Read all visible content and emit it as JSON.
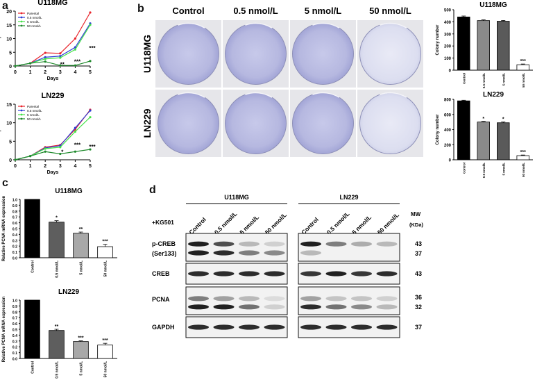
{
  "panels": {
    "a": "a",
    "b": "b",
    "c": "c",
    "d": "d"
  },
  "panel_a": [
    {
      "title": "U118MG",
      "ylabel": "Relative cell proliferation",
      "xlabel": "Days",
      "x_ticks": [
        "0",
        "1",
        "2",
        "3",
        "4",
        "5"
      ],
      "y_ticks": [
        "0",
        "5",
        "10",
        "15",
        "20"
      ],
      "legend": [
        "Parental",
        "0.5 nmol/L",
        "5 nmol/L",
        "50 nmol/L"
      ],
      "colors": [
        "#e8262d",
        "#2e3cd6",
        "#45e34a",
        "#1f8a2c"
      ],
      "annotations": [
        {
          "text": "**",
          "x": 3,
          "y": 0.6
        },
        {
          "text": "***",
          "x": 4,
          "y": 1.7
        },
        {
          "text": "***",
          "x": 5,
          "y": 6.6
        }
      ]
    },
    {
      "title": "LN229",
      "ylabel": "Relative cell proliferation",
      "xlabel": "Days",
      "x_ticks": [
        "0",
        "1",
        "2",
        "3",
        "4",
        "5"
      ],
      "y_ticks": [
        "0",
        "5",
        "10",
        "15"
      ],
      "legend": [
        "Parental",
        "0.5 nmol/L",
        "5 nmol/L",
        "50 nmol/L"
      ],
      "colors": [
        "#e8262d",
        "#2e3cd6",
        "#45e34a",
        "#1f8a2c"
      ],
      "annotations": [
        {
          "text": "*",
          "x": 3,
          "y": 2.2
        },
        {
          "text": "***",
          "x": 4,
          "y": 4.0
        },
        {
          "text": "***",
          "x": 5,
          "y": 3.6
        }
      ]
    }
  ],
  "panel_b": {
    "col_labels": [
      "Control",
      "0.5 nmol/L",
      "5 nmol/L",
      "50 nmol/L"
    ],
    "row_labels": [
      "U118MG",
      "LN229"
    ],
    "bar_charts": [
      {
        "title": "U118MG",
        "ylabel": "Colony number",
        "y_ticks": [
          "0",
          "100",
          "200",
          "300",
          "400",
          "500"
        ],
        "categories": [
          "Control",
          "0.5 nmol/L",
          "5 nmol/L",
          "50 nmol/L"
        ],
        "sig": [
          "",
          "",
          "",
          "***"
        ]
      },
      {
        "title": "LN229",
        "ylabel": "Colony number",
        "y_ticks": [
          "0",
          "200",
          "400",
          "600",
          "800"
        ],
        "categories": [
          "Control",
          "0.5 nmol/L",
          "5 nmol/L",
          "50 nmol/L"
        ],
        "sig": [
          "",
          "*",
          "*",
          "***"
        ]
      }
    ]
  },
  "panel_c": [
    {
      "title": "U118MG",
      "ylabel": "Relative PCNA mRNA expression",
      "y_ticks": [
        "0.0",
        "0.1",
        "0.2",
        "0.3",
        "0.4",
        "0.5",
        "0.6",
        "0.7",
        "0.8",
        "0.9",
        "1.0"
      ],
      "categories": [
        "Control",
        "0.5 nmol/L",
        "5 nmol/L",
        "50 nmol/L"
      ],
      "sig": [
        "",
        "*",
        "**",
        "***"
      ]
    },
    {
      "title": "LN229",
      "ylabel": "Relative PCNA mRNA expression",
      "y_ticks": [
        "0.0",
        "0.1",
        "0.2",
        "0.3",
        "0.4",
        "0.5",
        "0.6",
        "0.7",
        "0.8",
        "0.9",
        "1.0"
      ],
      "categories": [
        "Control",
        "0.5 nmol/L",
        "5 nmol/L",
        "50 nmol/L"
      ],
      "sig": [
        "",
        "**",
        "***",
        "***"
      ]
    }
  ],
  "panel_d": {
    "groups": [
      "U118MG",
      "LN229"
    ],
    "treatment": "+KG501",
    "lanes": [
      "Control",
      "0.5 nmol/L",
      "5 nmol/L",
      "50 nmol/L"
    ],
    "mw_header": "MW",
    "mw_unit": "(KDa)",
    "blots": [
      {
        "label": "p-CREB\n(Ser133)",
        "label1": "p-CREB",
        "label2": "(Ser133)",
        "mw": [
          "43",
          "37"
        ]
      },
      {
        "label": "CREB",
        "mw": [
          "43"
        ]
      },
      {
        "label": "PCNA",
        "mw": [
          "36",
          "32"
        ]
      },
      {
        "label": "GAPDH",
        "mw": [
          "37"
        ]
      }
    ]
  },
  "chart_data": [
    {
      "type": "line",
      "title": "U118MG",
      "xlabel": "Days",
      "ylabel": "Relative cell proliferation",
      "x": [
        0,
        1,
        2,
        3,
        4,
        5
      ],
      "xlim": [
        0,
        5
      ],
      "ylim": [
        0,
        20
      ],
      "series": [
        {
          "name": "Parental",
          "values": [
            0,
            1.0,
            4.8,
            4.6,
            10.0,
            19.5
          ]
        },
        {
          "name": "0.5 nmol/L",
          "values": [
            0,
            1.0,
            3.2,
            3.6,
            6.8,
            15.5
          ]
        },
        {
          "name": "5 nmol/L",
          "values": [
            0,
            1.0,
            2.6,
            3.0,
            6.0,
            15.0
          ]
        },
        {
          "name": "50 nmol/L",
          "values": [
            0,
            1.0,
            1.6,
            0.2,
            0.2,
            1.8
          ]
        }
      ]
    },
    {
      "type": "line",
      "title": "LN229",
      "xlabel": "Days",
      "ylabel": "Relative cell proliferation",
      "x": [
        0,
        1,
        2,
        3,
        4,
        5
      ],
      "xlim": [
        0,
        5
      ],
      "ylim": [
        0,
        15
      ],
      "series": [
        {
          "name": "Parental",
          "values": [
            0,
            1.0,
            3.4,
            4.0,
            8.2,
            13.5
          ]
        },
        {
          "name": "0.5 nmol/L",
          "values": [
            0,
            1.0,
            3.2,
            3.8,
            8.6,
            13.3
          ]
        },
        {
          "name": "5 nmol/L",
          "values": [
            0,
            1.0,
            3.0,
            3.4,
            7.6,
            11.5
          ]
        },
        {
          "name": "50 nmol/L",
          "values": [
            0,
            1.0,
            2.2,
            1.6,
            2.2,
            2.8
          ]
        }
      ]
    },
    {
      "type": "bar",
      "title": "U118MG",
      "ylabel": "Colony number",
      "ylim": [
        0,
        500
      ],
      "categories": [
        "Control",
        "0.5 nmol/L",
        "5 nmol/L",
        "50 nmol/L"
      ],
      "values": [
        440,
        410,
        405,
        45
      ],
      "errors": [
        8,
        6,
        6,
        6
      ],
      "colors": [
        "#000000",
        "#8a8a8a",
        "#5a5a5a",
        "#ffffff"
      ]
    },
    {
      "type": "bar",
      "title": "LN229",
      "ylabel": "Colony number",
      "ylim": [
        0,
        800
      ],
      "categories": [
        "Control",
        "0.5 nmol/L",
        "5 nmol/L",
        "50 nmol/L"
      ],
      "values": [
        780,
        500,
        490,
        55
      ],
      "errors": [
        8,
        8,
        10,
        8
      ],
      "colors": [
        "#000000",
        "#8a8a8a",
        "#5a5a5a",
        "#ffffff"
      ]
    },
    {
      "type": "bar",
      "title": "U118MG",
      "ylabel": "Relative PCNA mRNA expression",
      "ylim": [
        0,
        1.0
      ],
      "categories": [
        "Control",
        "0.5 nmol/L",
        "5 nmol/L",
        "50 nmol/L"
      ],
      "values": [
        1.0,
        0.61,
        0.42,
        0.19
      ],
      "errors": [
        0,
        0.025,
        0.02,
        0.04
      ],
      "colors": [
        "#000000",
        "#5e5e5e",
        "#a8a8a8",
        "#ffffff"
      ]
    },
    {
      "type": "bar",
      "title": "LN229",
      "ylabel": "Relative PCNA mRNA expression",
      "ylim": [
        0,
        1.0
      ],
      "categories": [
        "Control",
        "0.5 nmol/L",
        "5 nmol/L",
        "50 nmol/L"
      ],
      "values": [
        1.0,
        0.48,
        0.29,
        0.23
      ],
      "errors": [
        0,
        0.02,
        0.012,
        0.03
      ],
      "colors": [
        "#000000",
        "#5e5e5e",
        "#a8a8a8",
        "#ffffff"
      ]
    }
  ]
}
